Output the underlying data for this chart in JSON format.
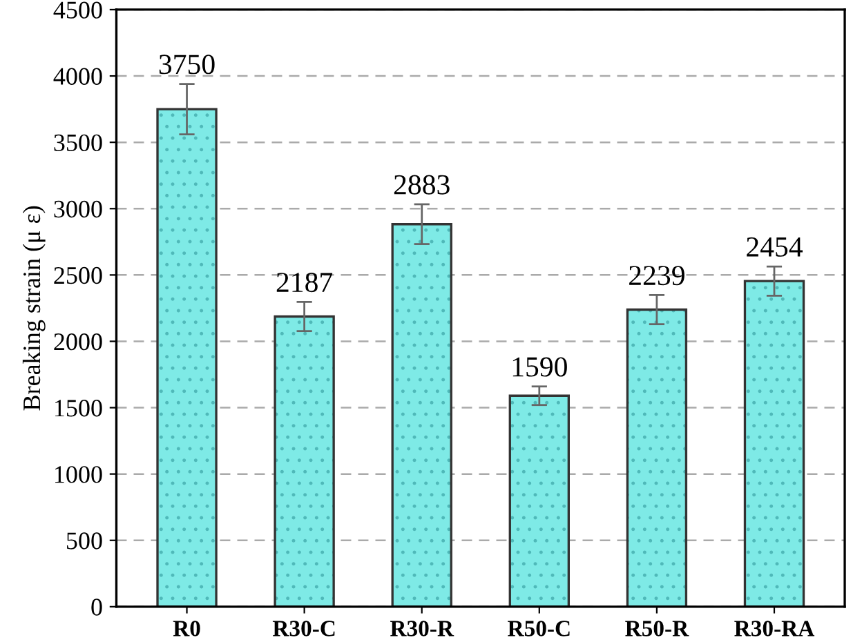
{
  "chart_data": {
    "type": "bar",
    "ylabel": "Breaking strain (μ ε)",
    "categories": [
      "R0",
      "R30-C",
      "R30-R",
      "R50-C",
      "R50-R",
      "R30-RA"
    ],
    "values": [
      3750,
      2187,
      2883,
      1590,
      2239,
      2454
    ],
    "errors": [
      190,
      110,
      150,
      70,
      110,
      110
    ],
    "color": "#7eeae6",
    "data_labels": true,
    "ylim": [
      0,
      4500
    ],
    "yticks": [
      0,
      500,
      1000,
      1500,
      2000,
      2500,
      3000,
      3500,
      4000,
      4500
    ],
    "grid": "y"
  }
}
